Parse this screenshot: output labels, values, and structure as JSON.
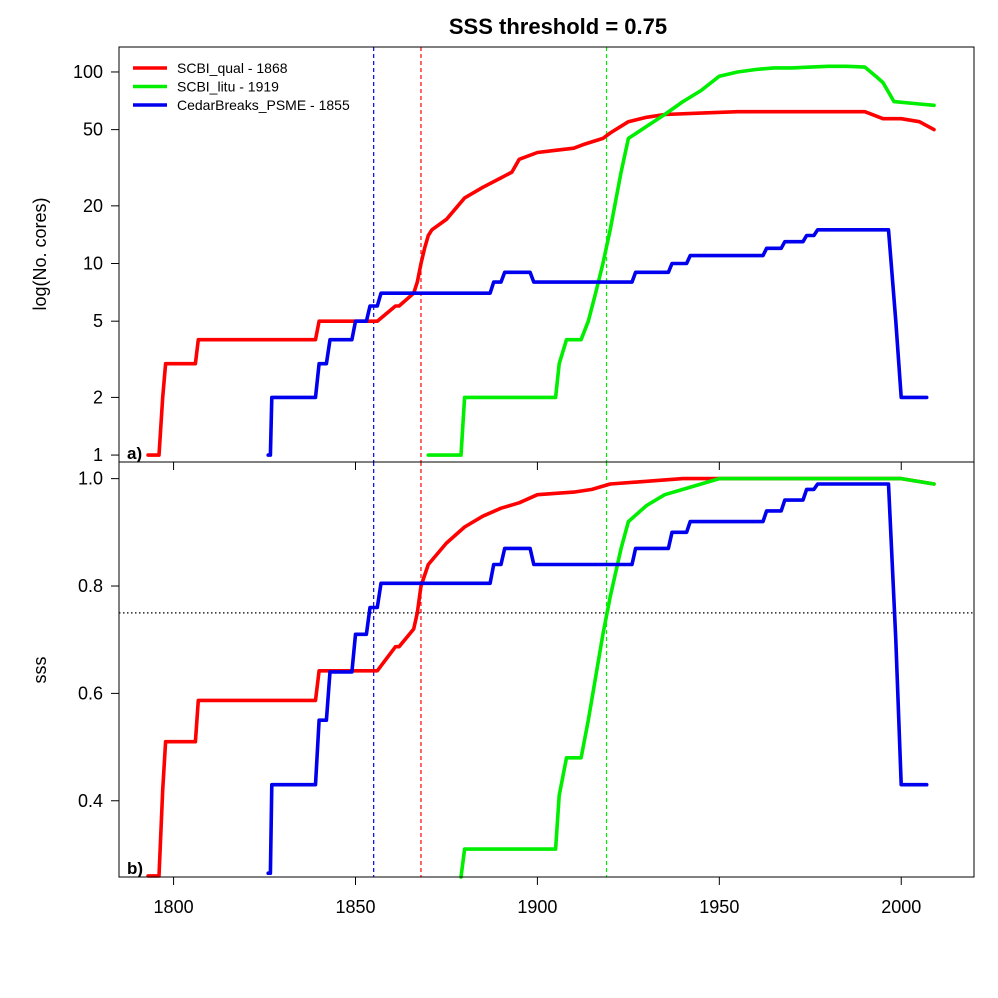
{
  "title": "SSS threshold = 0.75",
  "legend": [
    {
      "label": "SCBI_qual - 1868",
      "color": "#ff0000"
    },
    {
      "label": "SCBI_litu - 1919",
      "color": "#00ee00"
    },
    {
      "label": "CedarBreaks_PSME - 1855",
      "color": "#0000ee"
    }
  ],
  "chart_data": [
    {
      "type": "line",
      "panel_label": "a)",
      "xlabel": "",
      "ylabel": "log(No. cores)",
      "y_scale": "log",
      "xlim": [
        1785,
        2020
      ],
      "ylim": [
        0.92,
        135
      ],
      "y_ticks": [
        1,
        2,
        5,
        10,
        20,
        50,
        100
      ],
      "reference_vlines": [
        {
          "x": 1855,
          "color": "#0000ee"
        },
        {
          "x": 1868,
          "color": "#ff0000"
        },
        {
          "x": 1919,
          "color": "#00ee00"
        }
      ],
      "series": [
        {
          "name": "SCBI_qual - 1868",
          "color": "#ff0000",
          "x": [
            1793,
            1796,
            1797,
            1797.8,
            1806,
            1806.8,
            1839,
            1840,
            1854,
            1855,
            1856,
            1861,
            1862,
            1866,
            1867,
            1868,
            1869,
            1870,
            1871,
            1875,
            1880,
            1885,
            1890,
            1893,
            1895,
            1900,
            1905,
            1910,
            1913,
            1918,
            1920,
            1925,
            1930,
            1935,
            1945,
            1955,
            1965,
            1975,
            1985,
            1990,
            1995,
            2000,
            2005,
            2009
          ],
          "y": [
            1,
            1,
            2,
            3,
            3,
            4,
            4,
            5,
            5,
            5,
            5,
            6,
            6,
            7,
            8,
            10,
            12,
            14,
            15,
            17,
            22,
            25,
            28,
            30,
            35,
            38,
            39,
            40,
            42,
            45,
            48,
            55,
            58,
            60,
            61,
            62,
            62,
            62,
            62,
            62,
            57,
            57,
            55,
            50
          ]
        },
        {
          "name": "SCBI_litu - 1919",
          "color": "#00ee00",
          "x": [
            1870,
            1879,
            1880,
            1905,
            1906,
            1908,
            1912,
            1914,
            1916,
            1918,
            1920,
            1923,
            1925,
            1930,
            1935,
            1940,
            1945,
            1950,
            1955,
            1960,
            1965,
            1970,
            1975,
            1980,
            1985,
            1990,
            1993,
            1995,
            1998,
            2005,
            2009
          ],
          "y": [
            1,
            1,
            2,
            2,
            3,
            4,
            4,
            5,
            7,
            10,
            15,
            30,
            45,
            52,
            60,
            70,
            80,
            95,
            100,
            103,
            105,
            105,
            106,
            107,
            107,
            106,
            95,
            88,
            70,
            68,
            67
          ]
        },
        {
          "name": "CedarBreaks_PSME - 1855",
          "color": "#0000ee",
          "x": [
            1826,
            1826.6,
            1827,
            1839,
            1840,
            1842,
            1843,
            1849,
            1850,
            1853,
            1854,
            1856,
            1857,
            1858,
            1859,
            1887,
            1888,
            1889,
            1890,
            1891,
            1892,
            1897,
            1898,
            1899,
            1900,
            1925,
            1926,
            1927,
            1932,
            1933,
            1934,
            1936,
            1937,
            1938,
            1941,
            1942,
            1943,
            1962,
            1963,
            1967,
            1968,
            1973,
            1974,
            1976,
            1977,
            1995,
            1996.5,
            1998.5,
            2000,
            2007
          ],
          "y": [
            1,
            1,
            2,
            2,
            3,
            3,
            4,
            4,
            5,
            5,
            6,
            6,
            7,
            7,
            7,
            7,
            8,
            8,
            8,
            9,
            9,
            9,
            9,
            8,
            8,
            8,
            8,
            9,
            9,
            9,
            9,
            9,
            10,
            10,
            10,
            11,
            11,
            11,
            12,
            12,
            13,
            13,
            14,
            14,
            15,
            15,
            15,
            5,
            2,
            2
          ]
        }
      ]
    },
    {
      "type": "line",
      "panel_label": "b)",
      "xlabel": "",
      "ylabel": "sss",
      "y_scale": "linear",
      "xlim": [
        1785,
        2020
      ],
      "ylim": [
        0.258,
        1.031
      ],
      "y_ticks": [
        0.4,
        0.6,
        0.8,
        1.0
      ],
      "x_ticks": [
        1800,
        1850,
        1900,
        1950,
        2000
      ],
      "threshold": 0.75,
      "reference_vlines": [
        {
          "x": 1855,
          "color": "#0000ee"
        },
        {
          "x": 1868,
          "color": "#ff0000"
        },
        {
          "x": 1919,
          "color": "#00ee00"
        }
      ],
      "series": [
        {
          "name": "SCBI_qual - 1868",
          "color": "#ff0000",
          "x": [
            1793,
            1796,
            1797,
            1797.8,
            1806,
            1806.8,
            1839,
            1840,
            1854,
            1855,
            1856,
            1861,
            1862,
            1866,
            1867,
            1868,
            1870,
            1875,
            1880,
            1885,
            1890,
            1895,
            1900,
            1910,
            1915,
            1920,
            1930,
            1940,
            1950,
            1960,
            1980,
            2000,
            2009
          ],
          "y": [
            0.26,
            0.26,
            0.42,
            0.51,
            0.51,
            0.587,
            0.587,
            0.642,
            0.642,
            0.642,
            0.642,
            0.687,
            0.687,
            0.72,
            0.75,
            0.8,
            0.84,
            0.88,
            0.91,
            0.93,
            0.945,
            0.955,
            0.97,
            0.975,
            0.98,
            0.99,
            0.995,
            1.0,
            1.0,
            1.0,
            1.0,
            1.0,
            0.99
          ]
        },
        {
          "name": "SCBI_litu - 1919",
          "color": "#00ee00",
          "x": [
            1879,
            1880,
            1905,
            1906,
            1908,
            1912,
            1914,
            1916,
            1918,
            1920,
            1923,
            1925,
            1930,
            1935,
            1940,
            1950,
            1960,
            1980,
            2000,
            2009
          ],
          "y": [
            0.258,
            0.31,
            0.31,
            0.41,
            0.48,
            0.48,
            0.55,
            0.63,
            0.71,
            0.78,
            0.87,
            0.92,
            0.95,
            0.97,
            0.98,
            1.0,
            1.0,
            1.0,
            1.0,
            0.99
          ]
        },
        {
          "name": "CedarBreaks_PSME - 1855",
          "color": "#0000ee",
          "x": [
            1826,
            1826.6,
            1827,
            1839,
            1840,
            1842,
            1843,
            1849,
            1850,
            1853,
            1854,
            1856,
            1857,
            1858,
            1859,
            1887,
            1888,
            1889,
            1890,
            1891,
            1892,
            1897,
            1898,
            1899,
            1900,
            1925,
            1926,
            1927,
            1932,
            1933,
            1934,
            1936,
            1937,
            1938,
            1941,
            1942,
            1943,
            1962,
            1963,
            1967,
            1968,
            1973,
            1974,
            1976,
            1977,
            1995,
            1996.5,
            1998.5,
            2000,
            2007
          ],
          "y": [
            0.265,
            0.265,
            0.43,
            0.43,
            0.55,
            0.55,
            0.64,
            0.64,
            0.71,
            0.71,
            0.76,
            0.76,
            0.805,
            0.805,
            0.805,
            0.805,
            0.84,
            0.84,
            0.84,
            0.87,
            0.87,
            0.87,
            0.87,
            0.84,
            0.84,
            0.84,
            0.84,
            0.87,
            0.87,
            0.87,
            0.87,
            0.87,
            0.9,
            0.9,
            0.9,
            0.92,
            0.92,
            0.92,
            0.94,
            0.94,
            0.96,
            0.96,
            0.98,
            0.98,
            0.99,
            0.99,
            0.99,
            0.7,
            0.43,
            0.43
          ]
        }
      ]
    }
  ]
}
